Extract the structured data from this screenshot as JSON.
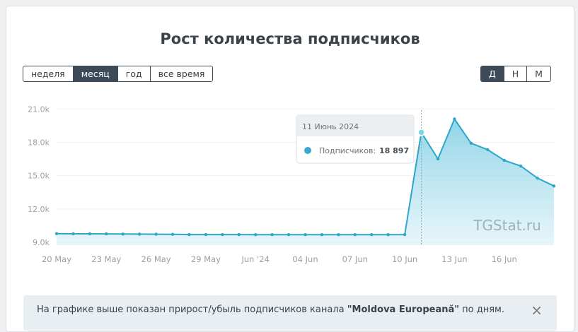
{
  "header": {
    "title": "Рост количества подписчиков"
  },
  "range_buttons": [
    "неделя",
    "месяц",
    "год",
    "все время"
  ],
  "range_active": 1,
  "period_buttons": [
    "Д",
    "Н",
    "М"
  ],
  "period_active": 0,
  "chart_data": {
    "type": "area",
    "categories": [
      "20 May",
      null,
      null,
      "23 May",
      null,
      null,
      "26 May",
      null,
      null,
      "29 May",
      null,
      null,
      "Jun '24",
      null,
      null,
      "04 Jun",
      null,
      null,
      "07 Jun",
      null,
      null,
      "10 Jun",
      null,
      null,
      "13 Jun",
      null,
      null,
      "16 Jun",
      null,
      null,
      null
    ],
    "series": [
      {
        "color": "#2ea6c8",
        "values": [
          9780,
          9770,
          9770,
          9760,
          9750,
          9740,
          9730,
          9720,
          9700,
          9700,
          9700,
          9700,
          9690,
          9690,
          9690,
          9690,
          9690,
          9690,
          9690,
          9690,
          9690,
          9700,
          18897,
          16510,
          20100,
          17920,
          17340,
          16380,
          15870,
          14780,
          14070
        ],
        "value_labels": [
          null,
          null,
          null,
          null,
          null,
          null,
          null,
          null,
          null,
          null,
          null,
          null,
          null,
          null,
          null,
          null,
          null,
          null,
          null,
          null,
          null,
          null,
          "18 897",
          null,
          null,
          null,
          null,
          null,
          null,
          null,
          null
        ]
      }
    ],
    "ylim": [
      8750,
      21400
    ],
    "yticks": [
      {
        "value": 9000,
        "label": "9.0k"
      },
      {
        "value": 12000,
        "label": "12.0k"
      },
      {
        "value": 15000,
        "label": "15.0k"
      },
      {
        "value": 18000,
        "label": "18.0k"
      },
      {
        "value": 21000,
        "label": "21.0k"
      }
    ],
    "grid": true
  },
  "tooltip": {
    "date": "11 Июнь 2024",
    "label": "Подписчиков:"
  },
  "watermark": "TGStat.ru",
  "info": {
    "prefix": "На графике выше показан прирост/убыль подписчиков канала ",
    "channel": "\"Moldova Europeană\"",
    "suffix": " по дням.",
    "close": "×"
  }
}
